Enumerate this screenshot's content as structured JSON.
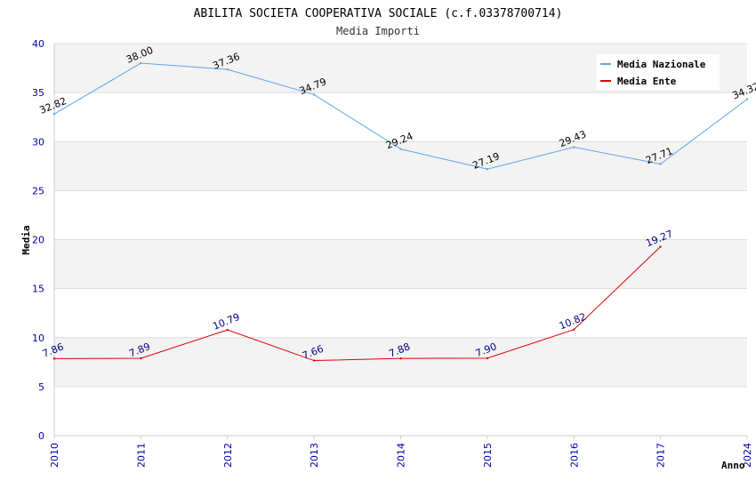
{
  "chart_data": {
    "type": "line",
    "title": "ABILITA SOCIETA COOPERATIVA SOCIALE (c.f.03378700714)",
    "subtitle": "Media Importi",
    "xlabel": "Anno",
    "ylabel": "Media",
    "ylim": [
      0,
      40
    ],
    "yticks": [
      0,
      5,
      10,
      15,
      20,
      25,
      30,
      35,
      40
    ],
    "categories": [
      "2010",
      "2011",
      "2012",
      "2013",
      "2014",
      "2015",
      "2016",
      "2017",
      "2024"
    ],
    "legend_position": "top-right",
    "series": [
      {
        "name": "Media Nazionale",
        "color": "#5da5e8",
        "label_color": "#000000",
        "values": [
          32.82,
          38.0,
          37.36,
          34.79,
          29.24,
          27.19,
          29.43,
          27.71,
          34.32
        ],
        "labels": [
          "32.82",
          "38.00",
          "37.36",
          "34.79",
          "29.24",
          "27.19",
          "29.43",
          "27.71",
          "34.32"
        ]
      },
      {
        "name": "Media Ente",
        "color": "#dd0000",
        "label_color": "#000080",
        "values": [
          7.86,
          7.89,
          10.79,
          7.66,
          7.88,
          7.9,
          10.82,
          19.27,
          null
        ],
        "labels": [
          "7.86",
          "7.89",
          "10.79",
          "7.66",
          "7.88",
          "7.90",
          "10.82",
          "19.27",
          null
        ]
      }
    ]
  }
}
